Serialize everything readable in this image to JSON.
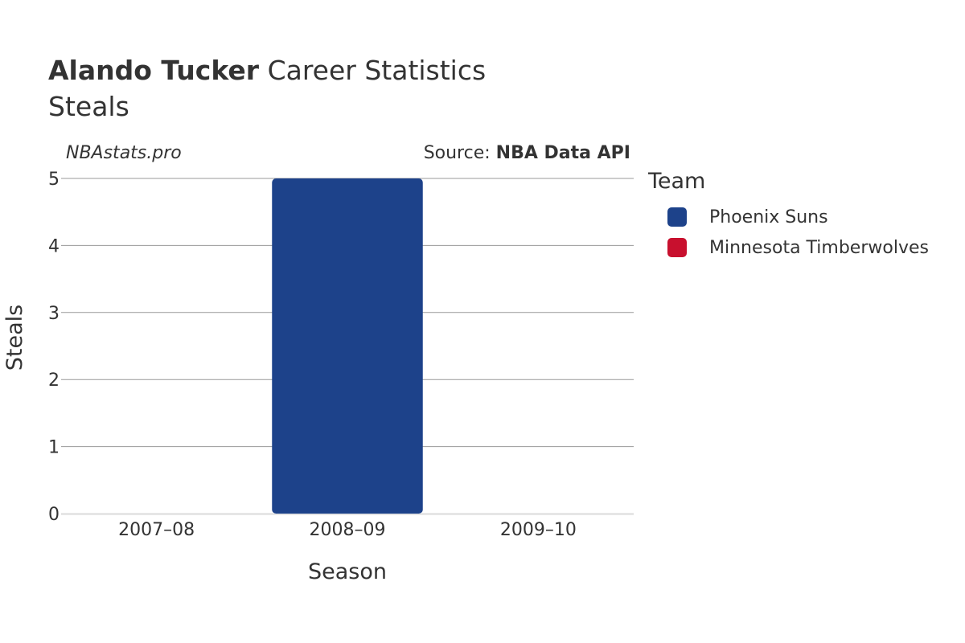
{
  "header": {
    "player": "Alando Tucker",
    "title_rest": "Career Statistics",
    "subtitle": "Steals",
    "watermark": "NBAstats.pro",
    "source_prefix": "Source: ",
    "source_name": "NBA Data API"
  },
  "legend": {
    "title": "Team",
    "items": [
      {
        "label": "Phoenix Suns",
        "color": "#1d428a"
      },
      {
        "label": "Minnesota Timberwolves",
        "color": "#c8102e"
      }
    ]
  },
  "chart_data": {
    "type": "bar",
    "title": "Alando Tucker Career Statistics",
    "subtitle": "Steals",
    "xlabel": "Season",
    "ylabel": "Steals",
    "categories": [
      "2007–08",
      "2008–09",
      "2009–10"
    ],
    "series": [
      {
        "name": "Phoenix Suns",
        "color": "#1d428a",
        "values": [
          0,
          5,
          0
        ]
      },
      {
        "name": "Minnesota Timberwolves",
        "color": "#c8102e",
        "values": [
          0,
          0,
          0
        ]
      }
    ],
    "ylim": [
      0,
      5
    ],
    "yticks": [
      0,
      1,
      2,
      3,
      4,
      5
    ],
    "grid": true,
    "legend_position": "right"
  }
}
